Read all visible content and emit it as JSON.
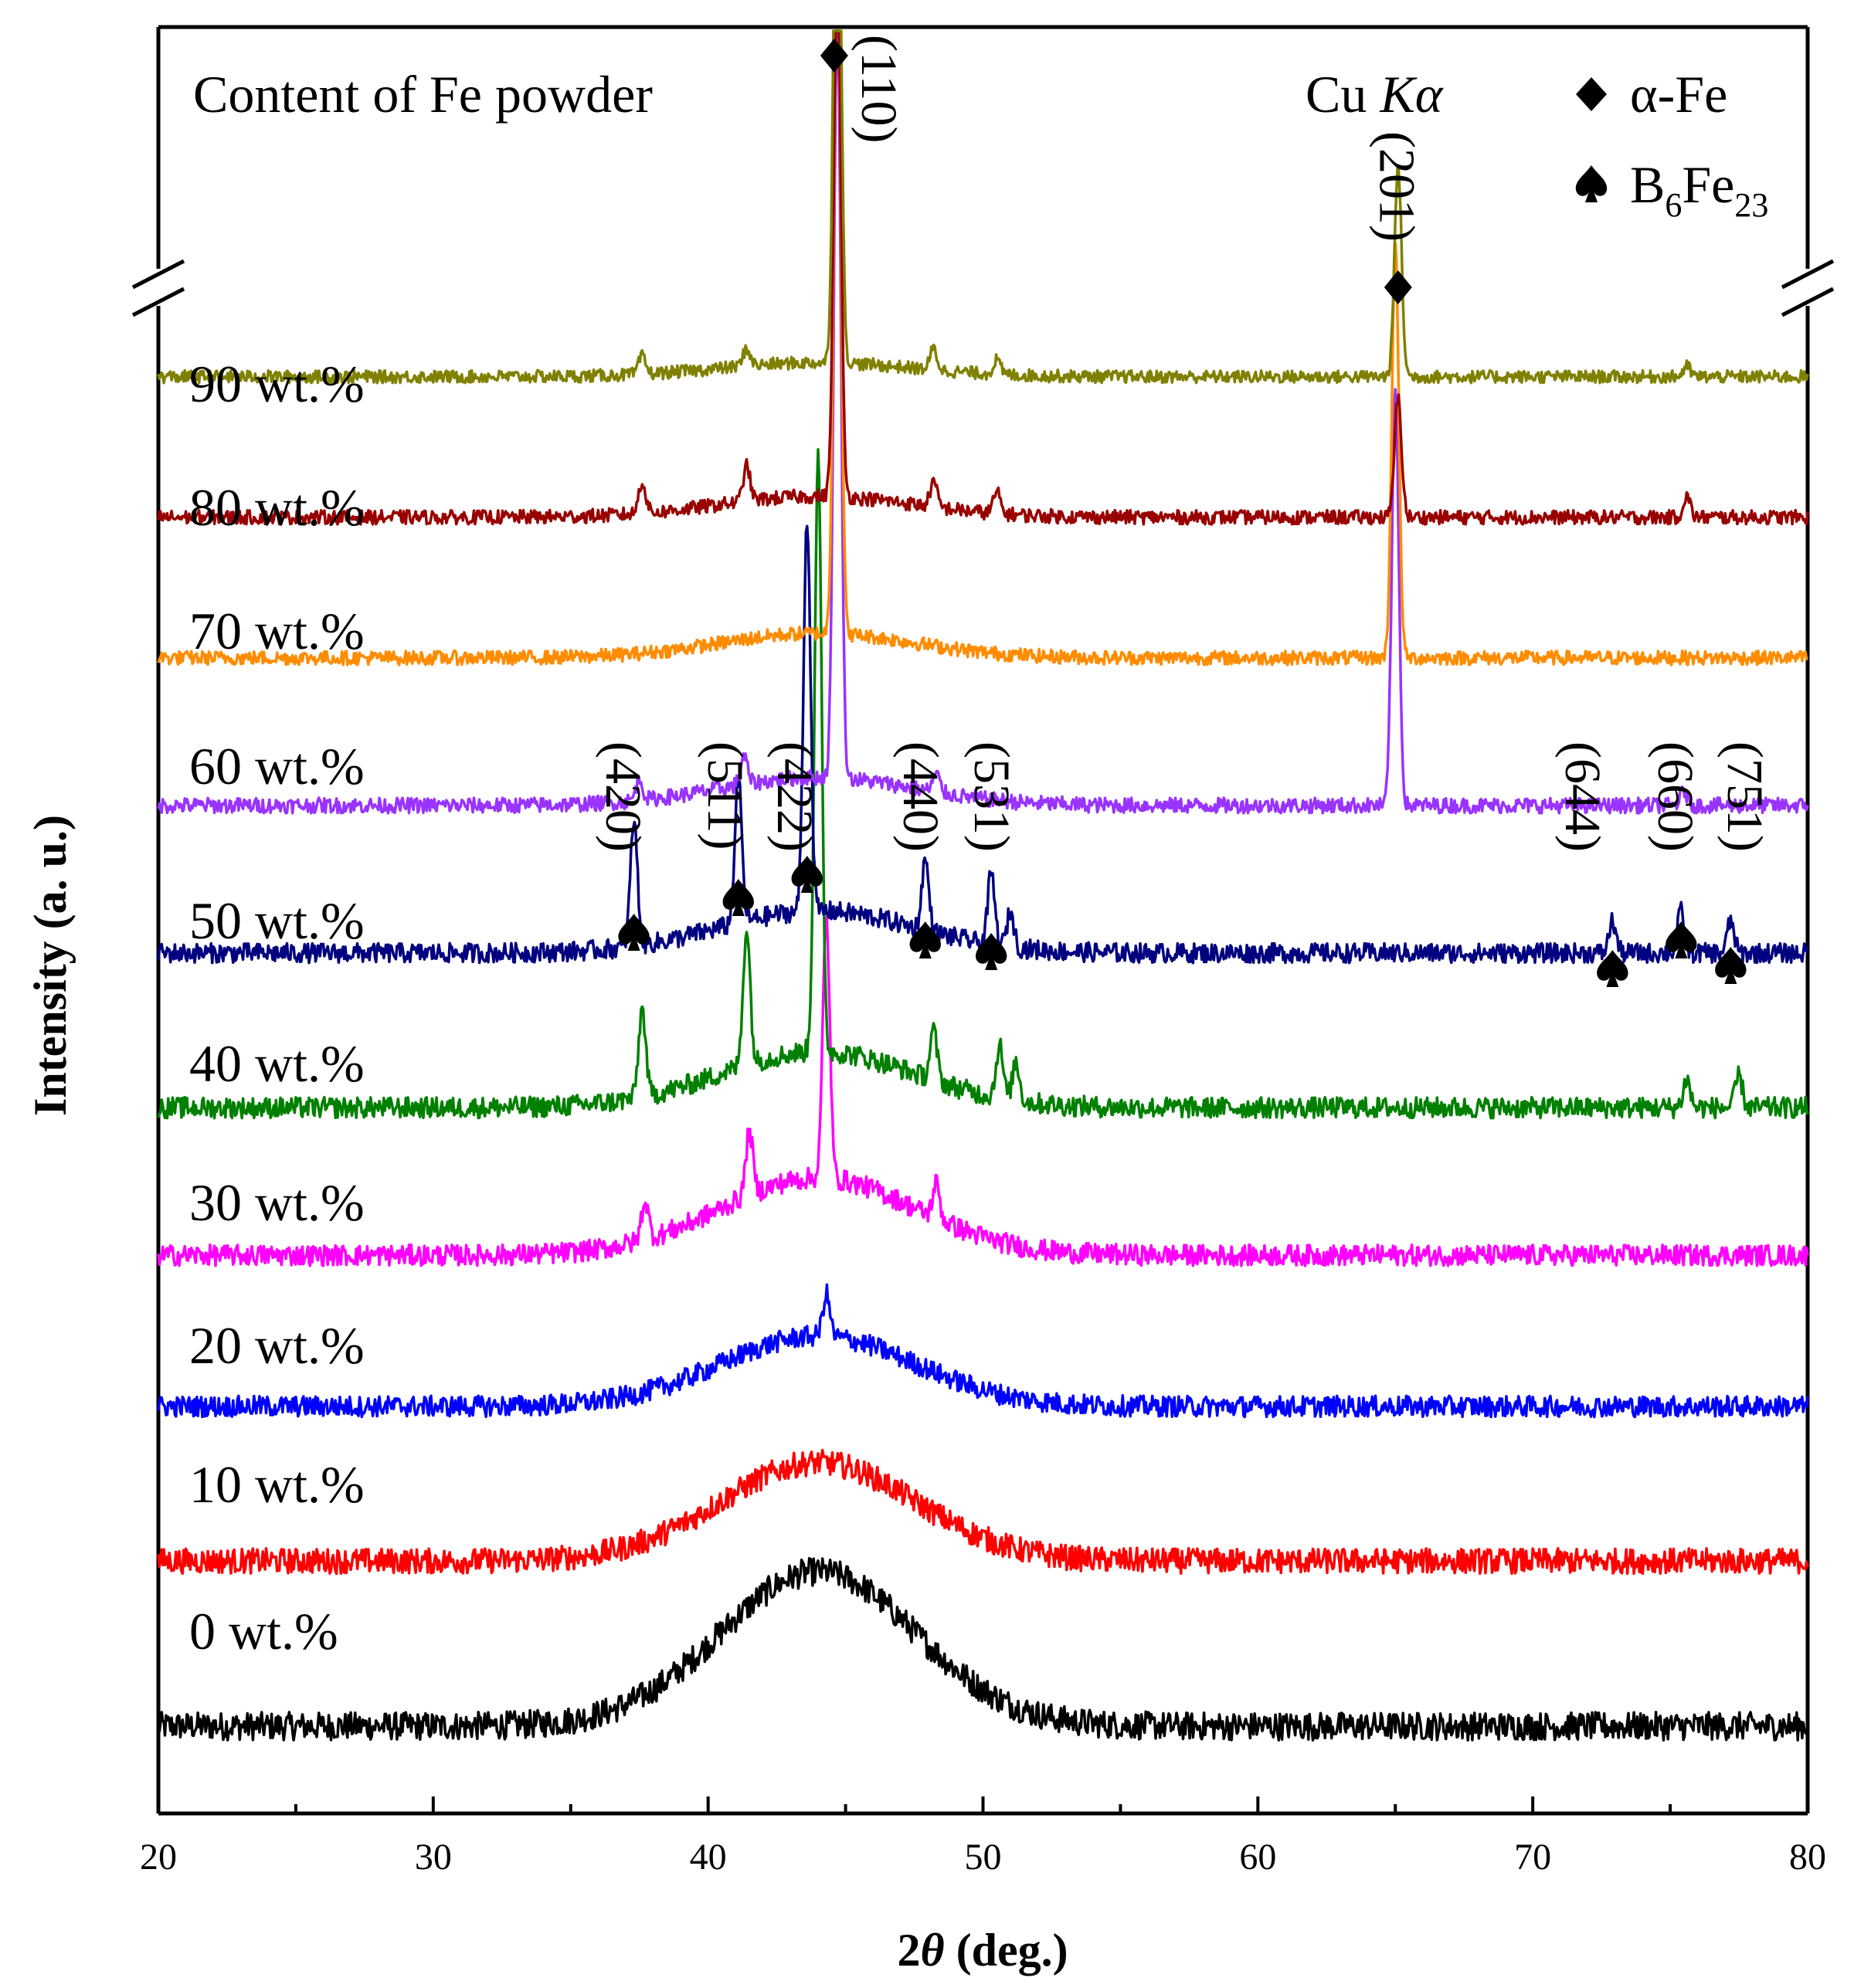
{
  "chart_data": {
    "type": "line",
    "title": "",
    "xlabel_prefix": "2",
    "xlabel_symbol": "θ",
    "xlabel_suffix": " (deg.)",
    "ylabel": "Intensity (a. u.)",
    "xlim": [
      20,
      80
    ],
    "x_ticks": [
      20,
      30,
      40,
      50,
      60,
      70,
      80
    ],
    "y_axis_break": true,
    "group_label": "Content of Fe powder",
    "radiation_prefix": "Cu ",
    "radiation_symbol": "Kα",
    "legend": {
      "position": "top-right",
      "entries": [
        {
          "marker": "diamond",
          "label": "α-Fe"
        },
        {
          "marker": "spade",
          "label_main": "B",
          "sub1": "6",
          "mid": "Fe",
          "sub2": "23"
        }
      ]
    },
    "series": [
      {
        "name": "0 wt.%",
        "color": "#000000",
        "baseline": 0.0,
        "noise": 0.2,
        "hump": 2.2,
        "peaks": []
      },
      {
        "name": "10 wt.%",
        "color": "#ff0000",
        "baseline": 2.35,
        "noise": 0.18,
        "hump": 1.4,
        "peaks": []
      },
      {
        "name": "20 wt.%",
        "color": "#0000ff",
        "baseline": 4.55,
        "noise": 0.15,
        "hump": 1.0,
        "peaks": [
          {
            "x": 44.3,
            "h": 0.6
          }
        ]
      },
      {
        "name": "30 wt.%",
        "color": "#ff00ff",
        "baseline": 6.7,
        "noise": 0.15,
        "hump": 1.1,
        "peaks": [
          {
            "x": 37.7,
            "h": 0.55
          },
          {
            "x": 41.5,
            "h": 0.9
          },
          {
            "x": 44.3,
            "h": 3.7
          },
          {
            "x": 48.3,
            "h": 0.5
          }
        ]
      },
      {
        "name": "40 wt.%",
        "color": "#008000",
        "baseline": 8.8,
        "noise": 0.15,
        "hump": 0.8,
        "peaks": [
          {
            "x": 37.6,
            "h": 1.25
          },
          {
            "x": 41.4,
            "h": 1.95
          },
          {
            "x": 44.0,
            "h": 8.5
          },
          {
            "x": 48.2,
            "h": 0.7
          },
          {
            "x": 50.6,
            "h": 0.75
          },
          {
            "x": 51.2,
            "h": 0.55
          },
          {
            "x": 75.6,
            "h": 0.4
          },
          {
            "x": 77.5,
            "h": 0.45
          }
        ]
      },
      {
        "name": "50 wt.%",
        "color": "#000080",
        "baseline": 11.0,
        "noise": 0.14,
        "hump": 0.6,
        "peaks": [
          {
            "x": 37.3,
            "h": 1.8
          },
          {
            "x": 41.1,
            "h": 2.05
          },
          {
            "x": 43.6,
            "h": 5.6
          },
          {
            "x": 47.9,
            "h": 1.0
          },
          {
            "x": 50.3,
            "h": 1.0
          },
          {
            "x": 51.0,
            "h": 0.5
          },
          {
            "x": 72.9,
            "h": 0.45
          },
          {
            "x": 75.4,
            "h": 0.6
          },
          {
            "x": 77.2,
            "h": 0.45
          }
        ]
      },
      {
        "name": "60 wt.%",
        "color": "#9933ff",
        "baseline": 13.1,
        "noise": 0.11,
        "hump": 0.4,
        "peaks": [
          {
            "x": 37.5,
            "h": 0.3
          },
          {
            "x": 41.3,
            "h": 0.4
          },
          {
            "x": 44.7,
            "h": 11.0
          },
          {
            "x": 48.3,
            "h": 0.25
          },
          {
            "x": 65.0,
            "h": 5.9
          },
          {
            "x": 75.5,
            "h": 0.2
          }
        ]
      },
      {
        "name": "70 wt.%",
        "color": "#ff8c00",
        "baseline": 15.2,
        "noise": 0.1,
        "hump": 0.35,
        "peaks": [
          {
            "x": 44.7,
            "h": 10.0
          },
          {
            "x": 65.0,
            "h": 5.9
          }
        ]
      },
      {
        "name": "80 wt.%",
        "color": "#990000",
        "baseline": 17.2,
        "noise": 0.1,
        "hump": 0.3,
        "peaks": [
          {
            "x": 37.6,
            "h": 0.45
          },
          {
            "x": 41.4,
            "h": 0.5
          },
          {
            "x": 44.7,
            "h": 7.5
          },
          {
            "x": 48.2,
            "h": 0.35
          },
          {
            "x": 50.5,
            "h": 0.3
          },
          {
            "x": 65.1,
            "h": 1.7
          },
          {
            "x": 75.6,
            "h": 0.3
          }
        ]
      },
      {
        "name": "90 wt.%",
        "color": "#808000",
        "baseline": 19.2,
        "noise": 0.09,
        "hump": 0.2,
        "peaks": [
          {
            "x": 37.6,
            "h": 0.25
          },
          {
            "x": 41.4,
            "h": 0.25
          },
          {
            "x": 44.7,
            "h": 9.0
          },
          {
            "x": 48.2,
            "h": 0.3
          },
          {
            "x": 50.5,
            "h": 0.2
          },
          {
            "x": 65.1,
            "h": 3.0
          },
          {
            "x": 75.6,
            "h": 0.15
          }
        ]
      }
    ],
    "fe_reflections": [
      {
        "hkl": "(110)",
        "x": 44.7
      },
      {
        "hkl": "(201)",
        "x": 65.1
      }
    ],
    "b6fe23_reflections": [
      {
        "hkl": "(420)",
        "x": 37.3
      },
      {
        "hkl": "(511)",
        "x": 41.1
      },
      {
        "hkl": "(422)",
        "x": 43.6
      },
      {
        "hkl": "(440)",
        "x": 47.9
      },
      {
        "hkl": "(531)",
        "x": 50.3
      },
      {
        "hkl": "(644)",
        "x": 72.9
      },
      {
        "hkl": "(660)",
        "x": 75.4
      },
      {
        "hkl": "(751)",
        "x": 77.2
      }
    ]
  }
}
